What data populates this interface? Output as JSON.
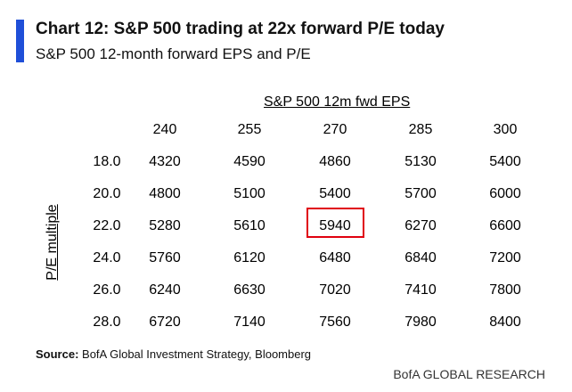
{
  "colors": {
    "accent": "#1f4fd8",
    "highlight": "#e0000f"
  },
  "header": {
    "title": "Chart 12: S&P 500 trading at 22x forward P/E today",
    "subtitle": "S&P 500 12-month forward EPS and P/E"
  },
  "chart_data": {
    "type": "table",
    "column_group_label": "S&P 500 12m fwd EPS",
    "row_group_label": "P/E multiple",
    "columns": [
      "240",
      "255",
      "270",
      "285",
      "300"
    ],
    "rows": [
      {
        "label": "18.0",
        "values": [
          "4320",
          "4590",
          "4860",
          "5130",
          "5400"
        ]
      },
      {
        "label": "20.0",
        "values": [
          "4800",
          "5100",
          "5400",
          "5700",
          "6000"
        ]
      },
      {
        "label": "22.0",
        "values": [
          "5280",
          "5610",
          "5940",
          "6270",
          "6600"
        ]
      },
      {
        "label": "24.0",
        "values": [
          "5760",
          "6120",
          "6480",
          "6840",
          "7200"
        ]
      },
      {
        "label": "26.0",
        "values": [
          "6240",
          "6630",
          "7020",
          "7410",
          "7800"
        ]
      },
      {
        "label": "28.0",
        "values": [
          "6720",
          "7140",
          "7560",
          "7980",
          "8400"
        ]
      }
    ],
    "highlighted_cell": {
      "row": "22.0",
      "column": "270",
      "value": "5940"
    }
  },
  "footer": {
    "source_label": "Source:",
    "source_text": " BofA Global Investment Strategy, Bloomberg",
    "brand": "BofA GLOBAL RESEARCH"
  }
}
